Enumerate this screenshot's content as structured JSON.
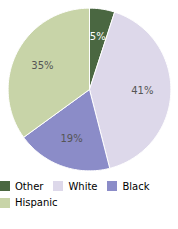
{
  "chart_data": {
    "type": "pie",
    "categories": [
      "Other",
      "White",
      "Black",
      "Hispanic"
    ],
    "values": [
      5,
      41,
      19,
      35
    ],
    "colors": [
      "#4a6741",
      "#ddd8ea",
      "#8b8cc8",
      "#c8d4a8"
    ],
    "data_labels": true,
    "value_labels": [
      "5%",
      "41%",
      "19%",
      "35%"
    ],
    "legend": "bottom"
  }
}
